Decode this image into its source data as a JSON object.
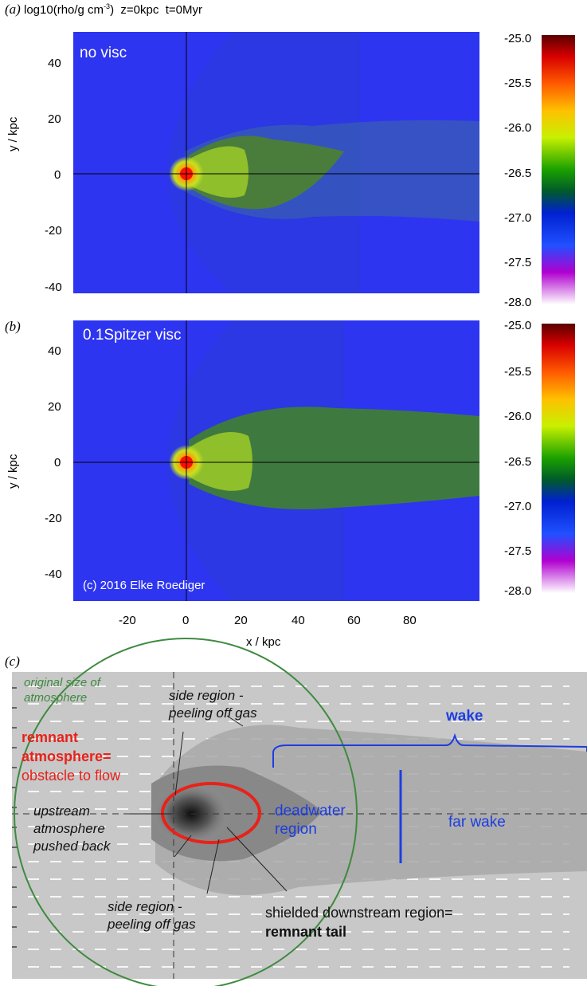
{
  "figure_title": {
    "panel": "(a)",
    "text": "log10(rho/g cm",
    "sup": "-3",
    "rest": ")  z=0kpc  t=0Myr"
  },
  "panel_a": {
    "letter": "(a)",
    "label": "no visc"
  },
  "panel_b": {
    "letter": "(b)",
    "label": "0.1Spitzer visc",
    "credit": "(c) 2016 Elke Roediger"
  },
  "panel_c": {
    "letter": "(c)",
    "original_size": [
      "original size of",
      "atmosphere"
    ],
    "remnant": [
      "remnant",
      "atmosphere=",
      "obstacle to flow"
    ],
    "upstream": [
      "upstream",
      "atmosphere",
      "pushed back"
    ],
    "side_top": [
      "side region -",
      "peeling off gas"
    ],
    "side_bottom": [
      "side region -",
      "peeling off gas"
    ],
    "wake": "wake",
    "deadwater": [
      "deadwater",
      "region"
    ],
    "far_wake": "far wake",
    "shielded": "shielded downstream region=",
    "remnant_tail": "remnant tail"
  },
  "axes": {
    "y_label": "y / kpc",
    "x_label": "x / kpc",
    "y_ticks": [
      "40",
      "20",
      "0",
      "-20",
      "-40"
    ],
    "x_ticks": [
      "-20",
      "0",
      "20",
      "40",
      "60",
      "80"
    ]
  },
  "colorbar": {
    "ticks": [
      "-25.0",
      "-25.5",
      "-26.0",
      "-26.5",
      "-27.0",
      "-27.5",
      "-28.0"
    ]
  },
  "colors": {
    "background_blue": "#2e35f0",
    "wake_green": "#3e8f3a",
    "annotation_red": "#e8221a",
    "annotation_blue": "#1d3de0",
    "annotation_green": "#3f8a3f"
  }
}
